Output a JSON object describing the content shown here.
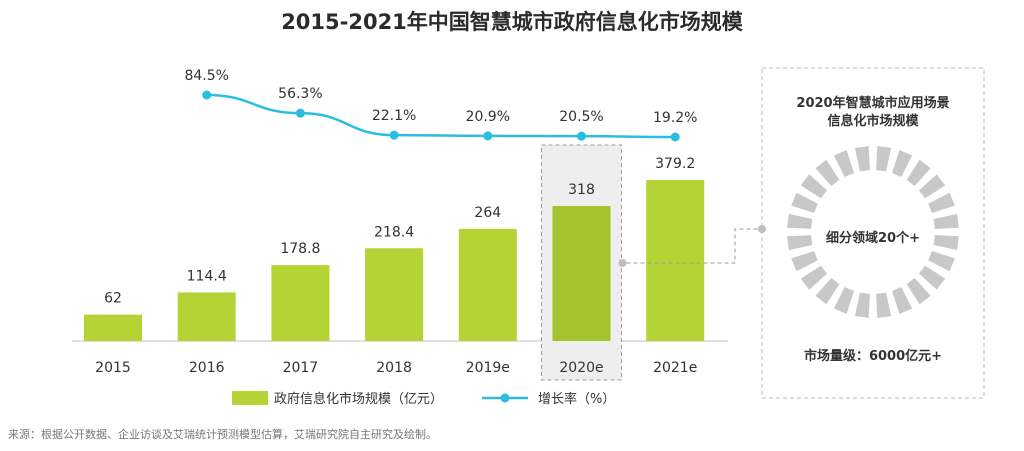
{
  "title": "2015-2021年中国智慧城市政府信息化市场规模",
  "source": "来源：根据公开数据、企业访谈及艾瑞统计预测模型估算，艾瑞研究院自主研究及绘制。",
  "colors": {
    "bar": "#b5d334",
    "bar_highlight": "#a3c42d",
    "line": "#29bde0",
    "panel_border": "#bdbdbd",
    "ring_segment": "#c8c8c8"
  },
  "chart_data": {
    "type": "bar",
    "categories": [
      "2015",
      "2016",
      "2017",
      "2018",
      "2019e",
      "2020e",
      "2021e"
    ],
    "series": [
      {
        "name": "政府信息化市场规模（亿元）",
        "type": "bar",
        "values": [
          62,
          114.4,
          178.8,
          218.4,
          264,
          318,
          379.2
        ],
        "labels": [
          "62",
          "114.4",
          "178.8",
          "218.4",
          "264",
          "318",
          "379.2"
        ]
      },
      {
        "name": "增长率（%）",
        "type": "line",
        "values": [
          null,
          84.5,
          56.3,
          22.1,
          20.9,
          20.5,
          19.2
        ],
        "labels": [
          "",
          "84.5%",
          "56.3%",
          "22.1%",
          "20.9%",
          "20.5%",
          "19.2%"
        ]
      }
    ],
    "highlighted_category": "2020e",
    "legend_position": "bottom",
    "grid": false
  },
  "side_panel": {
    "title_line1": "2020年智慧城市应用场景",
    "title_line2": "信息化市场规模",
    "center_text": "细分领域20个+",
    "bottom_text": "市场量级：6000亿元+",
    "ring_segments": 24
  }
}
